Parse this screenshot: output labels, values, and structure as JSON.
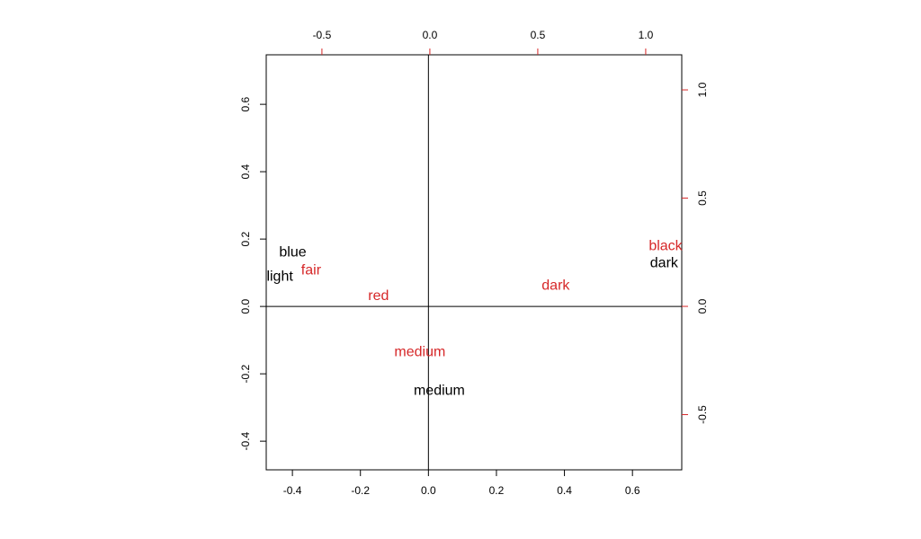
{
  "chart_data": {
    "type": "biplot",
    "xlim": [
      -0.477,
      0.745
    ],
    "ylim": [
      -0.485,
      0.747
    ],
    "x2lim": [
      -0.758,
      1.167
    ],
    "y2lim": [
      -0.755,
      1.162
    ],
    "xticks": [
      -0.4,
      -0.2,
      {
        "value": 0,
        "label": "0.0"
      },
      0.2,
      0.4,
      0.6
    ],
    "yticks": [
      -0.4,
      -0.2,
      {
        "value": 0,
        "label": "0.0"
      },
      0.2,
      0.4,
      0.6
    ],
    "x2ticks": [
      -0.5,
      {
        "value": 0,
        "label": "0.0"
      },
      0.5,
      {
        "value": 1,
        "label": "1.0"
      }
    ],
    "y2ticks": [
      -0.5,
      {
        "value": 0,
        "label": "0.0"
      },
      0.5,
      {
        "value": 1,
        "label": "1.0"
      }
    ],
    "axis2_color": "#d62728",
    "series": [
      {
        "color": "#000000",
        "labels": [
          "blue",
          "light",
          "medium",
          "dark"
        ],
        "x": [
          -0.399,
          -0.437,
          0.032,
          0.693
        ],
        "values": [
          0.16,
          0.088,
          -0.251,
          0.128
        ]
      },
      {
        "color": "#d62728",
        "axis": "y2",
        "labels": [
          "fair",
          "red",
          "medium",
          "dark",
          "black"
        ],
        "x": [
          -0.55,
          -0.238,
          -0.046,
          0.583,
          1.092
        ],
        "values": [
          0.166,
          0.046,
          -0.212,
          0.095,
          0.278
        ]
      }
    ]
  }
}
